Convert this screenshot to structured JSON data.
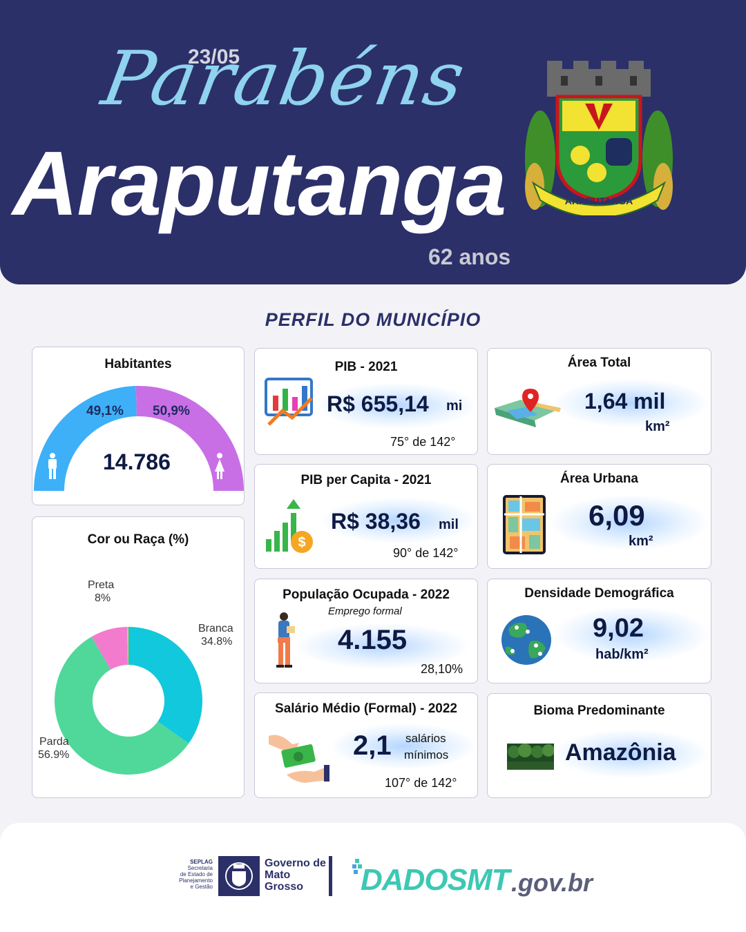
{
  "header": {
    "date": "23/05",
    "greeting": "Parabéns",
    "city": "Araputanga",
    "years": "62 anos",
    "crest_label": "ARAPUTANGA"
  },
  "section_title": "PERFIL DO MUNICÍPIO",
  "habitantes": {
    "title": "Habitantes",
    "total": "14.786",
    "male_pct_label": "49,1%",
    "female_pct_label": "50,9%",
    "male_pct": 49.1,
    "female_pct": 50.9,
    "male_color": "#3db0f7",
    "female_color": "#c86fe6"
  },
  "cor_raca": {
    "title": "Cor ou Raça (%)"
  },
  "chart_data": {
    "type": "pie",
    "title": "Cor ou Raça (%)",
    "series": [
      {
        "name": "Branca",
        "label": "Branca",
        "value_label": "34.8%",
        "value": 34.8,
        "color": "#12c8dc"
      },
      {
        "name": "Parda",
        "label": "Parda",
        "value_label": "56.9%",
        "value": 56.9,
        "color": "#4fd89a"
      },
      {
        "name": "Preta",
        "label": "Preta",
        "value_label": "8%",
        "value": 8,
        "color": "#f27bcd"
      },
      {
        "name": "",
        "label": "",
        "value_label": "",
        "value": 0.3,
        "color": "#f3c04a"
      }
    ]
  },
  "pib": {
    "title": "PIB - 2021",
    "value": "R$ 655,14",
    "unit": "mi",
    "rank": "75° de 142°"
  },
  "pib_capita": {
    "title": "PIB per Capita - 2021",
    "value": "R$ 38,36",
    "unit": "mil",
    "rank": "90° de 142°"
  },
  "populacao": {
    "title": "População  Ocupada - 2022",
    "subtitle": "Emprego formal",
    "value": "4.155",
    "rank": "28,10%"
  },
  "salario": {
    "title": "Salário Médio (Formal) - 2022",
    "value": "2,1",
    "unit_line1": "salários",
    "unit_line2": "mínimos",
    "rank": "107° de 142°"
  },
  "area_total": {
    "title": "Área Total",
    "value": "1,64 mil",
    "unit": "km²"
  },
  "area_urbana": {
    "title": "Área Urbana",
    "value": "6,09",
    "unit": "km²"
  },
  "densidade": {
    "title": "Densidade Demográfica",
    "value": "9,02",
    "unit": "hab/km²"
  },
  "bioma": {
    "title": "Bioma Predominante",
    "value": "Amazônia"
  },
  "footer": {
    "seplag_lines": [
      "SEPLAG",
      "Secretaria",
      "de Estado de",
      "Planejamento",
      "e Gestão"
    ],
    "gov_lines": [
      "Governo de",
      "Mato",
      "Grosso"
    ],
    "dados": "DADOSMT",
    "govbr": ".gov.br"
  }
}
